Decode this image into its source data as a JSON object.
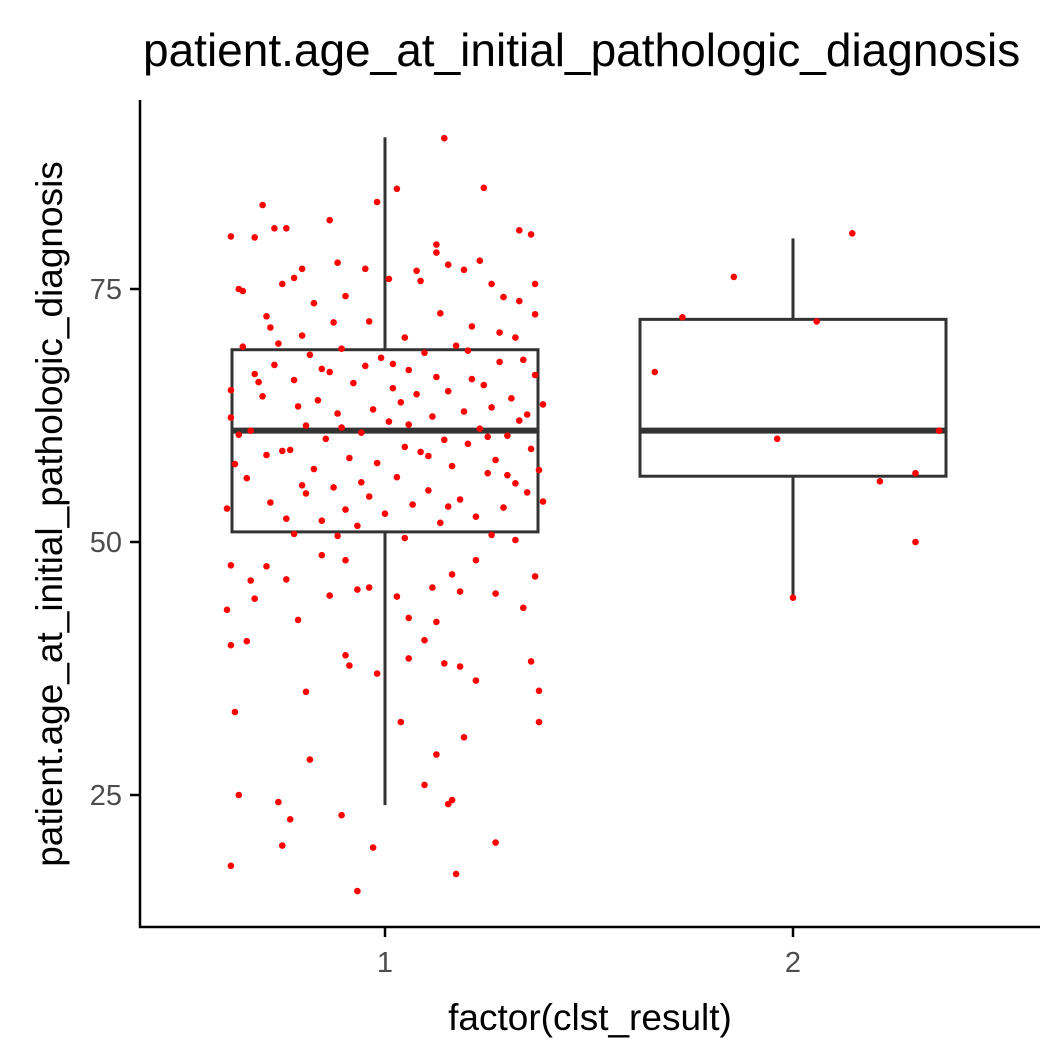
{
  "chart_data": {
    "type": "boxplot",
    "title": "patient.age_at_initial_pathologic_diagnosis",
    "xlabel": "factor(clst_result)",
    "ylabel": "patient.age_at_initial_pathologic_diagnosis",
    "categories": [
      "1",
      "2"
    ],
    "yticks": [
      25,
      50,
      75
    ],
    "ylim": [
      12,
      93
    ],
    "grid": false,
    "legend": "none",
    "colors": {
      "points": "#ff0000",
      "box": "#333333",
      "axis": "#000000"
    },
    "boxes": [
      {
        "category": "1",
        "min": 24,
        "q1": 51,
        "median": 61,
        "q3": 69,
        "max": 90
      },
      {
        "category": "2",
        "min": 44.5,
        "q1": 56.5,
        "median": 61,
        "q3": 72,
        "max": 80
      }
    ],
    "points": [
      {
        "c": 1,
        "j": -0.39,
        "y": 18
      },
      {
        "c": 1,
        "j": -0.37,
        "y": 25
      },
      {
        "c": 1,
        "j": -0.27,
        "y": 24.3
      },
      {
        "c": 1,
        "j": -0.26,
        "y": 20
      },
      {
        "c": 1,
        "j": -0.24,
        "y": 22.6
      },
      {
        "c": 1,
        "j": -0.2,
        "y": 35.2
      },
      {
        "c": 1,
        "j": -0.19,
        "y": 28.5
      },
      {
        "c": 1,
        "j": -0.11,
        "y": 23
      },
      {
        "c": 1,
        "j": -0.09,
        "y": 37.8
      },
      {
        "c": 1,
        "j": -0.1,
        "y": 38.8
      },
      {
        "c": 1,
        "j": -0.07,
        "y": 15.5
      },
      {
        "c": 1,
        "j": -0.03,
        "y": 19.8
      },
      {
        "c": 1,
        "j": -0.02,
        "y": 37
      },
      {
        "c": 1,
        "j": 0.04,
        "y": 32.2
      },
      {
        "c": 1,
        "j": 0.1,
        "y": 26
      },
      {
        "c": 1,
        "j": 0.13,
        "y": 29
      },
      {
        "c": 1,
        "j": 0.16,
        "y": 24.1
      },
      {
        "c": 1,
        "j": 0.17,
        "y": 24.5
      },
      {
        "c": 1,
        "j": 0.18,
        "y": 17.2
      },
      {
        "c": 1,
        "j": 0.2,
        "y": 30.7
      },
      {
        "c": 1,
        "j": 0.23,
        "y": 36.3
      },
      {
        "c": 1,
        "j": 0.28,
        "y": 20.3
      },
      {
        "c": 1,
        "j": 0.37,
        "y": 38.2
      },
      {
        "c": 1,
        "j": 0.39,
        "y": 35.3
      },
      {
        "c": 1,
        "j": 0.39,
        "y": 32.2
      },
      {
        "c": 1,
        "j": -0.39,
        "y": 39.8
      },
      {
        "c": 1,
        "j": -0.38,
        "y": 33.2
      },
      {
        "c": 1,
        "j": -0.35,
        "y": 40.2
      },
      {
        "c": 1,
        "j": -0.4,
        "y": 43.3
      },
      {
        "c": 1,
        "j": -0.39,
        "y": 47.7
      },
      {
        "c": 1,
        "j": -0.34,
        "y": 46.2
      },
      {
        "c": 1,
        "j": -0.33,
        "y": 44.4
      },
      {
        "c": 1,
        "j": -0.3,
        "y": 47.6
      },
      {
        "c": 1,
        "j": -0.25,
        "y": 46.3
      },
      {
        "c": 1,
        "j": -0.22,
        "y": 42.3
      },
      {
        "c": 1,
        "j": -0.16,
        "y": 48.7
      },
      {
        "c": 1,
        "j": -0.14,
        "y": 44.7
      },
      {
        "c": 1,
        "j": -0.1,
        "y": 48.2
      },
      {
        "c": 1,
        "j": -0.07,
        "y": 45.3
      },
      {
        "c": 1,
        "j": -0.04,
        "y": 45.5
      },
      {
        "c": 1,
        "j": 0.03,
        "y": 44.6
      },
      {
        "c": 1,
        "j": 0.06,
        "y": 42.5
      },
      {
        "c": 1,
        "j": 0.1,
        "y": 40.3
      },
      {
        "c": 1,
        "j": 0.12,
        "y": 45.5
      },
      {
        "c": 1,
        "j": 0.17,
        "y": 46.8
      },
      {
        "c": 1,
        "j": 0.19,
        "y": 45.1
      },
      {
        "c": 1,
        "j": 0.23,
        "y": 48.2
      },
      {
        "c": 1,
        "j": 0.28,
        "y": 44.9
      },
      {
        "c": 1,
        "j": 0.35,
        "y": 43.5
      },
      {
        "c": 1,
        "j": 0.38,
        "y": 46.6
      },
      {
        "c": 1,
        "j": 0.06,
        "y": 38.5
      },
      {
        "c": 1,
        "j": 0.15,
        "y": 38
      },
      {
        "c": 1,
        "j": 0.13,
        "y": 42.1
      },
      {
        "c": 1,
        "j": 0.19,
        "y": 37.7
      },
      {
        "c": 1,
        "j": -0.39,
        "y": 80.2
      },
      {
        "c": 1,
        "j": -0.31,
        "y": 83.3
      },
      {
        "c": 1,
        "j": -0.33,
        "y": 80.1
      },
      {
        "c": 1,
        "j": -0.28,
        "y": 81
      },
      {
        "c": 1,
        "j": -0.25,
        "y": 81
      },
      {
        "c": 1,
        "j": -0.14,
        "y": 81.8
      },
      {
        "c": 1,
        "j": -0.02,
        "y": 83.6
      },
      {
        "c": 1,
        "j": 0.03,
        "y": 84.9
      },
      {
        "c": 1,
        "j": 0.15,
        "y": 89.9
      },
      {
        "c": 1,
        "j": 0.25,
        "y": 85
      },
      {
        "c": 1,
        "j": 0.34,
        "y": 80.8
      },
      {
        "c": 1,
        "j": 0.37,
        "y": 80.4
      },
      {
        "c": 1,
        "j": 0.13,
        "y": 79.4
      },
      {
        "c": 1,
        "j": -0.37,
        "y": 75
      },
      {
        "c": 1,
        "j": -0.36,
        "y": 74.8
      },
      {
        "c": 1,
        "j": -0.26,
        "y": 75.5
      },
      {
        "c": 1,
        "j": -0.23,
        "y": 76.1
      },
      {
        "c": 1,
        "j": -0.21,
        "y": 77
      },
      {
        "c": 1,
        "j": -0.12,
        "y": 77.6
      },
      {
        "c": 1,
        "j": -0.05,
        "y": 77
      },
      {
        "c": 1,
        "j": 0.01,
        "y": 76
      },
      {
        "c": 1,
        "j": 0.08,
        "y": 76.8
      },
      {
        "c": 1,
        "j": 0.16,
        "y": 77.4
      },
      {
        "c": 1,
        "j": 0.2,
        "y": 76.9
      },
      {
        "c": 1,
        "j": 0.24,
        "y": 77.8
      },
      {
        "c": 1,
        "j": 0.27,
        "y": 75.5
      },
      {
        "c": 1,
        "j": 0.3,
        "y": 74.2
      },
      {
        "c": 1,
        "j": 0.38,
        "y": 75.5
      },
      {
        "c": 1,
        "j": 0.34,
        "y": 73.8
      },
      {
        "c": 1,
        "j": 0.33,
        "y": 70.2
      },
      {
        "c": 1,
        "j": 0.38,
        "y": 72.5
      },
      {
        "c": 1,
        "j": 0.09,
        "y": 75.8
      },
      {
        "c": 1,
        "j": -0.18,
        "y": 73.6
      },
      {
        "c": 1,
        "j": -0.1,
        "y": 74.3
      },
      {
        "c": 1,
        "j": -0.3,
        "y": 72.3
      },
      {
        "c": 1,
        "j": 0.13,
        "y": 78.6
      },
      {
        "c": 1,
        "j": -0.39,
        "y": 65
      },
      {
        "c": 1,
        "j": -0.39,
        "y": 62.3
      },
      {
        "c": 1,
        "j": -0.37,
        "y": 60.6
      },
      {
        "c": 1,
        "j": -0.36,
        "y": 69.3
      },
      {
        "c": 1,
        "j": -0.35,
        "y": 56.3
      },
      {
        "c": 1,
        "j": -0.33,
        "y": 66.6
      },
      {
        "c": 1,
        "j": -0.31,
        "y": 64.4
      },
      {
        "c": 1,
        "j": -0.3,
        "y": 58.6
      },
      {
        "c": 1,
        "j": -0.29,
        "y": 53.9
      },
      {
        "c": 1,
        "j": -0.28,
        "y": 67.5
      },
      {
        "c": 1,
        "j": -0.27,
        "y": 69.6
      },
      {
        "c": 1,
        "j": -0.25,
        "y": 52.3
      },
      {
        "c": 1,
        "j": -0.24,
        "y": 59.1
      },
      {
        "c": 1,
        "j": -0.23,
        "y": 66
      },
      {
        "c": 1,
        "j": -0.22,
        "y": 63.4
      },
      {
        "c": 1,
        "j": -0.21,
        "y": 55.6
      },
      {
        "c": 1,
        "j": -0.2,
        "y": 61.5
      },
      {
        "c": 1,
        "j": -0.19,
        "y": 68.5
      },
      {
        "c": 1,
        "j": -0.18,
        "y": 57.2
      },
      {
        "c": 1,
        "j": -0.17,
        "y": 64
      },
      {
        "c": 1,
        "j": -0.16,
        "y": 52.1
      },
      {
        "c": 1,
        "j": -0.15,
        "y": 60.2
      },
      {
        "c": 1,
        "j": -0.14,
        "y": 66.8
      },
      {
        "c": 1,
        "j": -0.13,
        "y": 55.4
      },
      {
        "c": 1,
        "j": -0.12,
        "y": 62.7
      },
      {
        "c": 1,
        "j": -0.11,
        "y": 69.1
      },
      {
        "c": 1,
        "j": -0.1,
        "y": 53.2
      },
      {
        "c": 1,
        "j": -0.09,
        "y": 58.3
      },
      {
        "c": 1,
        "j": -0.08,
        "y": 65.7
      },
      {
        "c": 1,
        "j": -0.07,
        "y": 51.6
      },
      {
        "c": 1,
        "j": -0.06,
        "y": 60.8
      },
      {
        "c": 1,
        "j": -0.05,
        "y": 67.4
      },
      {
        "c": 1,
        "j": -0.04,
        "y": 54.5
      },
      {
        "c": 1,
        "j": -0.03,
        "y": 63.1
      },
      {
        "c": 1,
        "j": -0.02,
        "y": 57.8
      },
      {
        "c": 1,
        "j": -0.01,
        "y": 68.2
      },
      {
        "c": 1,
        "j": 0.0,
        "y": 52.8
      },
      {
        "c": 1,
        "j": 0.01,
        "y": 61.9
      },
      {
        "c": 1,
        "j": 0.02,
        "y": 65.2
      },
      {
        "c": 1,
        "j": 0.03,
        "y": 56.4
      },
      {
        "c": 1,
        "j": 0.04,
        "y": 63.8
      },
      {
        "c": 1,
        "j": 0.05,
        "y": 59.4
      },
      {
        "c": 1,
        "j": 0.06,
        "y": 67
      },
      {
        "c": 1,
        "j": 0.07,
        "y": 53.7
      },
      {
        "c": 1,
        "j": 0.08,
        "y": 64.6
      },
      {
        "c": 1,
        "j": 0.09,
        "y": 58.9
      },
      {
        "c": 1,
        "j": 0.1,
        "y": 68.7
      },
      {
        "c": 1,
        "j": 0.11,
        "y": 55.1
      },
      {
        "c": 1,
        "j": 0.12,
        "y": 62.4
      },
      {
        "c": 1,
        "j": 0.13,
        "y": 66.3
      },
      {
        "c": 1,
        "j": 0.14,
        "y": 51.9
      },
      {
        "c": 1,
        "j": 0.15,
        "y": 60.1
      },
      {
        "c": 1,
        "j": 0.16,
        "y": 64.9
      },
      {
        "c": 1,
        "j": 0.17,
        "y": 57.5
      },
      {
        "c": 1,
        "j": 0.18,
        "y": 69.4
      },
      {
        "c": 1,
        "j": 0.19,
        "y": 54.2
      },
      {
        "c": 1,
        "j": 0.2,
        "y": 62.9
      },
      {
        "c": 1,
        "j": 0.21,
        "y": 59.7
      },
      {
        "c": 1,
        "j": 0.22,
        "y": 66.1
      },
      {
        "c": 1,
        "j": 0.23,
        "y": 52.5
      },
      {
        "c": 1,
        "j": 0.24,
        "y": 61.2
      },
      {
        "c": 1,
        "j": 0.25,
        "y": 65.5
      },
      {
        "c": 1,
        "j": 0.26,
        "y": 56.8
      },
      {
        "c": 1,
        "j": 0.27,
        "y": 63.3
      },
      {
        "c": 1,
        "j": 0.28,
        "y": 58.1
      },
      {
        "c": 1,
        "j": 0.29,
        "y": 67.8
      },
      {
        "c": 1,
        "j": 0.3,
        "y": 53.4
      },
      {
        "c": 1,
        "j": 0.31,
        "y": 60.5
      },
      {
        "c": 1,
        "j": 0.32,
        "y": 64.2
      },
      {
        "c": 1,
        "j": 0.33,
        "y": 55.8
      },
      {
        "c": 1,
        "j": 0.34,
        "y": 62
      },
      {
        "c": 1,
        "j": 0.35,
        "y": 68
      },
      {
        "c": 1,
        "j": 0.36,
        "y": 54.9
      },
      {
        "c": 1,
        "j": 0.37,
        "y": 59.2
      },
      {
        "c": 1,
        "j": 0.38,
        "y": 66.5
      },
      {
        "c": 1,
        "j": 0.39,
        "y": 57.1
      },
      {
        "c": 1,
        "j": 0.4,
        "y": 63.6
      },
      {
        "c": 1,
        "j": 0.4,
        "y": 54
      },
      {
        "c": 1,
        "j": -0.38,
        "y": 57.7
      },
      {
        "c": 1,
        "j": -0.4,
        "y": 53.3
      },
      {
        "c": 1,
        "j": -0.34,
        "y": 61
      },
      {
        "c": 1,
        "j": -0.32,
        "y": 65.8
      },
      {
        "c": 1,
        "j": -0.26,
        "y": 59
      },
      {
        "c": 1,
        "j": -0.2,
        "y": 54.8
      },
      {
        "c": 1,
        "j": -0.16,
        "y": 67.1
      },
      {
        "c": 1,
        "j": -0.11,
        "y": 61.3
      },
      {
        "c": 1,
        "j": -0.06,
        "y": 55.9
      },
      {
        "c": 1,
        "j": 0.02,
        "y": 67.6
      },
      {
        "c": 1,
        "j": 0.06,
        "y": 61.6
      },
      {
        "c": 1,
        "j": 0.11,
        "y": 58.5
      },
      {
        "c": 1,
        "j": 0.16,
        "y": 53.5
      },
      {
        "c": 1,
        "j": 0.21,
        "y": 68.9
      },
      {
        "c": 1,
        "j": 0.26,
        "y": 60.4
      },
      {
        "c": 1,
        "j": 0.31,
        "y": 56.6
      },
      {
        "c": 1,
        "j": 0.36,
        "y": 62.6
      },
      {
        "c": 1,
        "j": -0.23,
        "y": 50.8
      },
      {
        "c": 1,
        "j": -0.12,
        "y": 50.6
      },
      {
        "c": 1,
        "j": 0.05,
        "y": 50.4
      },
      {
        "c": 1,
        "j": 0.27,
        "y": 50.7
      },
      {
        "c": 1,
        "j": 0.33,
        "y": 50.2
      },
      {
        "c": 1,
        "j": -0.29,
        "y": 71.2
      },
      {
        "c": 1,
        "j": -0.21,
        "y": 70.4
      },
      {
        "c": 1,
        "j": -0.13,
        "y": 71.7
      },
      {
        "c": 1,
        "j": -0.04,
        "y": 71.8
      },
      {
        "c": 1,
        "j": 0.05,
        "y": 70.2
      },
      {
        "c": 1,
        "j": 0.14,
        "y": 72.6
      },
      {
        "c": 1,
        "j": 0.22,
        "y": 71.3
      },
      {
        "c": 1,
        "j": 0.29,
        "y": 70.7
      },
      {
        "c": 2,
        "j": -0.35,
        "y": 66.8
      },
      {
        "c": 2,
        "j": -0.28,
        "y": 72.2
      },
      {
        "c": 2,
        "j": -0.15,
        "y": 76.2
      },
      {
        "c": 2,
        "j": -0.04,
        "y": 60.2
      },
      {
        "c": 2,
        "j": 0.06,
        "y": 71.8
      },
      {
        "c": 2,
        "j": 0.15,
        "y": 80.5
      },
      {
        "c": 2,
        "j": 0.22,
        "y": 56
      },
      {
        "c": 2,
        "j": 0.31,
        "y": 56.8
      },
      {
        "c": 2,
        "j": 0.31,
        "y": 50
      },
      {
        "c": 2,
        "j": 0.37,
        "y": 61
      },
      {
        "c": 2,
        "j": 0.0,
        "y": 44.5
      }
    ]
  }
}
